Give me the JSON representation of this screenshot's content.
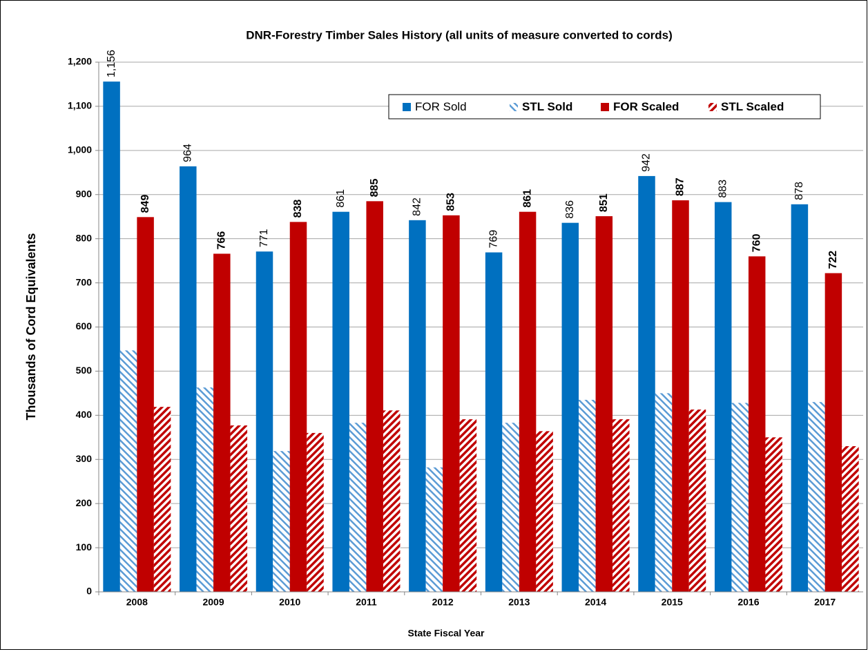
{
  "chart_data": {
    "type": "bar",
    "title": "DNR-Forestry Timber Sales History (all units of measure converted to cords)",
    "x_label": "State Fiscal Year",
    "y_label": "Thousands of Cord Equivalents",
    "categories": [
      "2008",
      "2009",
      "2010",
      "2011",
      "2012",
      "2013",
      "2014",
      "2015",
      "2016",
      "2017"
    ],
    "series": [
      {
        "name": "FOR Sold",
        "color": "#0070c0",
        "pattern": "solid",
        "labels": true,
        "values": [
          1156,
          964,
          771,
          861,
          842,
          769,
          836,
          942,
          883,
          878
        ],
        "value_labels": [
          "1,156",
          "964",
          "771",
          "861",
          "842",
          "769",
          "836",
          "942",
          "883",
          "878"
        ]
      },
      {
        "name": "STL Sold",
        "color": "#5b9bd5",
        "pattern": "hatch-back",
        "values": [
          547,
          463,
          319,
          383,
          282,
          383,
          435,
          450,
          428,
          430
        ]
      },
      {
        "name": "FOR Scaled",
        "color": "#c00000",
        "pattern": "solid",
        "labels": true,
        "values": [
          849,
          766,
          838,
          885,
          853,
          861,
          851,
          887,
          760,
          722
        ]
      },
      {
        "name": "STL Scaled",
        "color": "#c00000",
        "pattern": "hatch-forward",
        "values": [
          419,
          377,
          360,
          411,
          391,
          364,
          391,
          413,
          350,
          330
        ]
      }
    ],
    "ylim": [
      0,
      1200
    ],
    "yticks": [
      0,
      100,
      200,
      300,
      400,
      500,
      600,
      700,
      800,
      900,
      {
        "value": 1000,
        "label": "1,000"
      },
      {
        "value": 1100,
        "label": "1,100"
      },
      {
        "value": 1200,
        "label": "1,200"
      }
    ],
    "grid": true,
    "legend": "top-right"
  }
}
